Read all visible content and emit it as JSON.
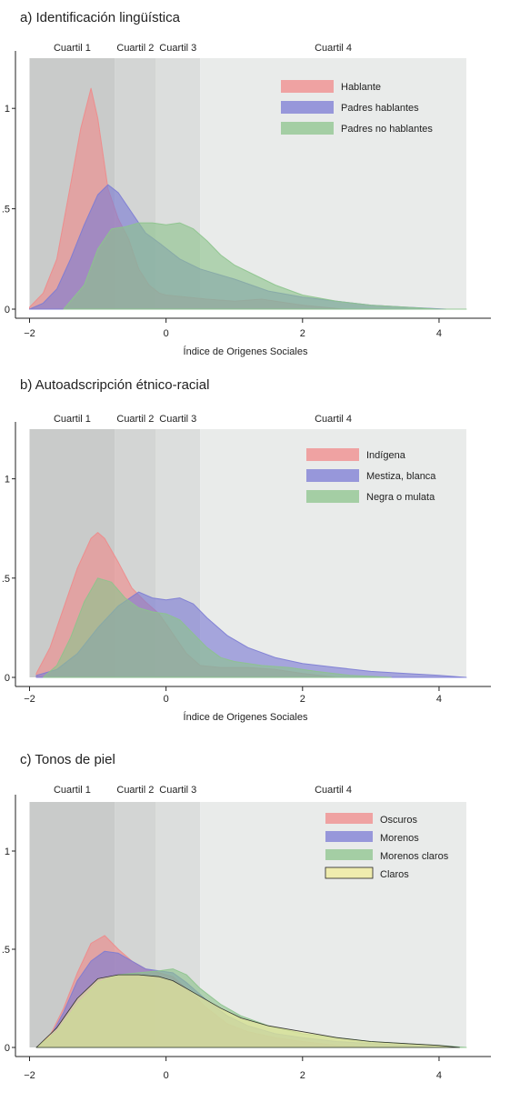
{
  "chart_data": [
    {
      "type": "area",
      "title": "a) Identificación lingüística",
      "xlabel": "Índice de Origenes Sociales",
      "ylabel": "",
      "xlim": [
        -2.1,
        4.6
      ],
      "ylim": [
        0,
        1.25
      ],
      "xticks": [
        {
          "v": -2,
          "label": "−2"
        },
        {
          "v": 0,
          "label": "0"
        },
        {
          "v": 2,
          "label": "2"
        },
        {
          "v": 4,
          "label": "4"
        }
      ],
      "yticks": [
        {
          "v": 0,
          "label": "0"
        },
        {
          "v": 0.5,
          "label": ".5"
        },
        {
          "v": 1,
          "label": "1"
        }
      ],
      "quartile_bands": [
        {
          "label": "Cuartil 1",
          "from": -2.0,
          "to": -0.75,
          "color": "#c9cbca"
        },
        {
          "label": "Cuartil 2",
          "from": -0.75,
          "to": -0.15,
          "color": "#d3d5d4"
        },
        {
          "label": "Cuartil 3",
          "from": -0.15,
          "to": 0.5,
          "color": "#dcdedd"
        },
        {
          "label": "Cuartil 4",
          "from": 0.5,
          "to": 4.4,
          "color": "#e9ebea"
        }
      ],
      "legend_position": "top-right",
      "series": [
        {
          "name": "Hablante",
          "color": "#f08a8a",
          "x": [
            -2.0,
            -1.8,
            -1.6,
            -1.4,
            -1.25,
            -1.1,
            -1.0,
            -0.85,
            -0.7,
            -0.55,
            -0.4,
            -0.25,
            -0.1,
            0.0,
            0.3,
            0.6,
            1.0,
            1.4,
            2.0,
            2.6
          ],
          "y": [
            0.01,
            0.08,
            0.25,
            0.62,
            0.9,
            1.1,
            0.95,
            0.6,
            0.45,
            0.35,
            0.2,
            0.12,
            0.08,
            0.07,
            0.06,
            0.05,
            0.04,
            0.05,
            0.02,
            0.0
          ]
        },
        {
          "name": "Padres hablantes",
          "color": "#7b7bd4",
          "x": [
            -2.0,
            -1.8,
            -1.6,
            -1.4,
            -1.2,
            -1.0,
            -0.85,
            -0.7,
            -0.5,
            -0.3,
            -0.1,
            0.2,
            0.5,
            1.0,
            1.5,
            2.0,
            2.5,
            3.0,
            3.5,
            4.1
          ],
          "y": [
            0.0,
            0.03,
            0.1,
            0.25,
            0.42,
            0.57,
            0.62,
            0.58,
            0.48,
            0.38,
            0.33,
            0.25,
            0.2,
            0.15,
            0.09,
            0.06,
            0.04,
            0.02,
            0.01,
            0.0
          ]
        },
        {
          "name": "Padres no hablantes",
          "color": "#8cc48c",
          "x": [
            -1.5,
            -1.2,
            -1.0,
            -0.8,
            -0.6,
            -0.4,
            -0.2,
            0.0,
            0.2,
            0.4,
            0.6,
            0.8,
            1.0,
            1.3,
            1.6,
            2.0,
            2.5,
            3.0,
            3.5,
            4.0,
            4.4
          ],
          "y": [
            0.0,
            0.12,
            0.3,
            0.4,
            0.41,
            0.43,
            0.43,
            0.42,
            0.43,
            0.4,
            0.34,
            0.27,
            0.22,
            0.17,
            0.12,
            0.07,
            0.04,
            0.02,
            0.01,
            0.0,
            0.0
          ]
        }
      ]
    },
    {
      "type": "area",
      "title": "b) Autoadscripción étnico-racial",
      "xlabel": "Índice de Origenes Sociales",
      "ylabel": "",
      "xlim": [
        -2.1,
        4.6
      ],
      "ylim": [
        0,
        1.25
      ],
      "xticks": [
        {
          "v": -2,
          "label": "−2"
        },
        {
          "v": 0,
          "label": "0"
        },
        {
          "v": 2,
          "label": "2"
        },
        {
          "v": 4,
          "label": "4"
        }
      ],
      "yticks": [
        {
          "v": 0,
          "label": "0"
        },
        {
          "v": 0.5,
          "label": ".5"
        },
        {
          "v": 1,
          "label": "1"
        }
      ],
      "quartile_bands": [
        {
          "label": "Cuartil 1",
          "from": -2.0,
          "to": -0.75,
          "color": "#c9cbca"
        },
        {
          "label": "Cuartil 2",
          "from": -0.75,
          "to": -0.15,
          "color": "#d3d5d4"
        },
        {
          "label": "Cuartil 3",
          "from": -0.15,
          "to": 0.5,
          "color": "#dcdedd"
        },
        {
          "label": "Cuartil 4",
          "from": 0.5,
          "to": 4.4,
          "color": "#e9ebea"
        }
      ],
      "legend_position": "top-right",
      "series": [
        {
          "name": "Indígena",
          "color": "#f08a8a",
          "x": [
            -1.9,
            -1.7,
            -1.5,
            -1.3,
            -1.1,
            -1.0,
            -0.9,
            -0.7,
            -0.5,
            -0.3,
            -0.1,
            0.1,
            0.3,
            0.5,
            0.8,
            1.2,
            1.6,
            2.0,
            2.5
          ],
          "y": [
            0.02,
            0.15,
            0.35,
            0.55,
            0.7,
            0.73,
            0.7,
            0.58,
            0.45,
            0.38,
            0.32,
            0.22,
            0.12,
            0.06,
            0.05,
            0.05,
            0.04,
            0.02,
            0.0
          ]
        },
        {
          "name": "Mestiza, blanca",
          "color": "#7b7bd4",
          "x": [
            -1.9,
            -1.6,
            -1.3,
            -1.0,
            -0.7,
            -0.4,
            -0.2,
            0.0,
            0.2,
            0.4,
            0.6,
            0.9,
            1.2,
            1.6,
            2.0,
            2.5,
            3.0,
            3.5,
            4.0,
            4.4
          ],
          "y": [
            0.01,
            0.04,
            0.12,
            0.25,
            0.36,
            0.43,
            0.4,
            0.39,
            0.4,
            0.37,
            0.3,
            0.21,
            0.15,
            0.1,
            0.07,
            0.05,
            0.03,
            0.02,
            0.01,
            0.0
          ]
        },
        {
          "name": "Negra o mulata",
          "color": "#8cc48c",
          "x": [
            -1.8,
            -1.6,
            -1.4,
            -1.2,
            -1.0,
            -0.8,
            -0.6,
            -0.4,
            -0.2,
            0.0,
            0.2,
            0.4,
            0.6,
            0.8,
            1.0,
            1.4,
            1.8,
            2.2,
            2.7,
            3.3
          ],
          "y": [
            0.0,
            0.06,
            0.2,
            0.38,
            0.5,
            0.48,
            0.4,
            0.35,
            0.33,
            0.32,
            0.29,
            0.22,
            0.15,
            0.1,
            0.08,
            0.06,
            0.05,
            0.03,
            0.01,
            0.0
          ]
        }
      ]
    },
    {
      "type": "area",
      "title": "c) Tonos de piel",
      "xlabel": "",
      "ylabel": "",
      "xlim": [
        -2.1,
        4.6
      ],
      "ylim": [
        0,
        1.25
      ],
      "xticks": [
        {
          "v": -2,
          "label": "−2"
        },
        {
          "v": 0,
          "label": "0"
        },
        {
          "v": 2,
          "label": "2"
        },
        {
          "v": 4,
          "label": "4"
        }
      ],
      "yticks": [
        {
          "v": 0,
          "label": "0"
        },
        {
          "v": 0.5,
          "label": ".5"
        },
        {
          "v": 1,
          "label": "1"
        }
      ],
      "quartile_bands": [
        {
          "label": "Cuartil 1",
          "from": -2.0,
          "to": -0.75,
          "color": "#c9cbca"
        },
        {
          "label": "Cuartil 2",
          "from": -0.75,
          "to": -0.15,
          "color": "#d3d5d4"
        },
        {
          "label": "Cuartil 3",
          "from": -0.15,
          "to": 0.5,
          "color": "#dcdedd"
        },
        {
          "label": "Cuartil 4",
          "from": 0.5,
          "to": 4.4,
          "color": "#e9ebea"
        }
      ],
      "legend_position": "top-right",
      "series": [
        {
          "name": "Oscuros",
          "color": "#f08a8a",
          "x": [
            -1.9,
            -1.7,
            -1.5,
            -1.3,
            -1.1,
            -0.9,
            -0.7,
            -0.5,
            -0.3,
            -0.1,
            0.1,
            0.3,
            0.6,
            0.9,
            1.2,
            1.6,
            2.0,
            2.5,
            3.0
          ],
          "y": [
            0.0,
            0.06,
            0.2,
            0.38,
            0.53,
            0.57,
            0.5,
            0.44,
            0.4,
            0.38,
            0.36,
            0.3,
            0.2,
            0.12,
            0.08,
            0.05,
            0.03,
            0.01,
            0.0
          ]
        },
        {
          "name": "Morenos",
          "color": "#7b7bd4",
          "x": [
            -1.9,
            -1.7,
            -1.5,
            -1.3,
            -1.1,
            -0.9,
            -0.7,
            -0.5,
            -0.3,
            -0.1,
            0.1,
            0.3,
            0.6,
            0.9,
            1.2,
            1.6,
            2.0,
            2.5,
            3.0,
            3.5,
            4.0
          ],
          "y": [
            0.0,
            0.05,
            0.18,
            0.34,
            0.44,
            0.49,
            0.48,
            0.44,
            0.4,
            0.39,
            0.38,
            0.33,
            0.24,
            0.16,
            0.11,
            0.07,
            0.05,
            0.03,
            0.02,
            0.01,
            0.0
          ]
        },
        {
          "name": "Morenos claros",
          "color": "#8cc48c",
          "x": [
            -1.9,
            -1.6,
            -1.3,
            -1.0,
            -0.7,
            -0.4,
            -0.1,
            0.1,
            0.3,
            0.5,
            0.8,
            1.1,
            1.5,
            2.0,
            2.5,
            3.0,
            3.5,
            4.0,
            4.4
          ],
          "y": [
            0.0,
            0.08,
            0.22,
            0.33,
            0.37,
            0.38,
            0.39,
            0.4,
            0.37,
            0.3,
            0.22,
            0.16,
            0.11,
            0.07,
            0.05,
            0.03,
            0.02,
            0.01,
            0.0
          ]
        },
        {
          "name": "Claros",
          "color": "#f0ec9a",
          "stroke": "#222222",
          "x": [
            -1.9,
            -1.6,
            -1.3,
            -1.0,
            -0.7,
            -0.4,
            -0.1,
            0.1,
            0.3,
            0.5,
            0.8,
            1.1,
            1.5,
            2.0,
            2.5,
            3.0,
            3.5,
            4.0,
            4.3
          ],
          "y": [
            0.0,
            0.1,
            0.25,
            0.35,
            0.37,
            0.37,
            0.36,
            0.34,
            0.3,
            0.26,
            0.2,
            0.15,
            0.11,
            0.08,
            0.05,
            0.03,
            0.02,
            0.01,
            0.0
          ]
        }
      ]
    }
  ]
}
